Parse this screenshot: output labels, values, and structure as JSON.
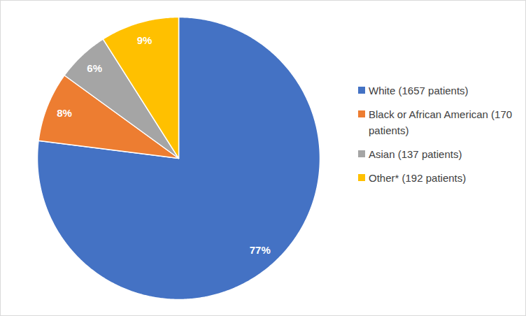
{
  "chart_data": {
    "type": "pie",
    "categories": [
      "White (1657 patients)",
      "Black or African American (170 patients)",
      "Asian (137 patients)",
      "Other* (192 patients)"
    ],
    "values": [
      77,
      8,
      6,
      9
    ],
    "value_labels": [
      "77%",
      "8%",
      "6%",
      "9%"
    ],
    "colors": [
      "#4472c4",
      "#ed7d31",
      "#a5a5a5",
      "#ffc000"
    ],
    "data_labels": true,
    "legend": "right"
  }
}
